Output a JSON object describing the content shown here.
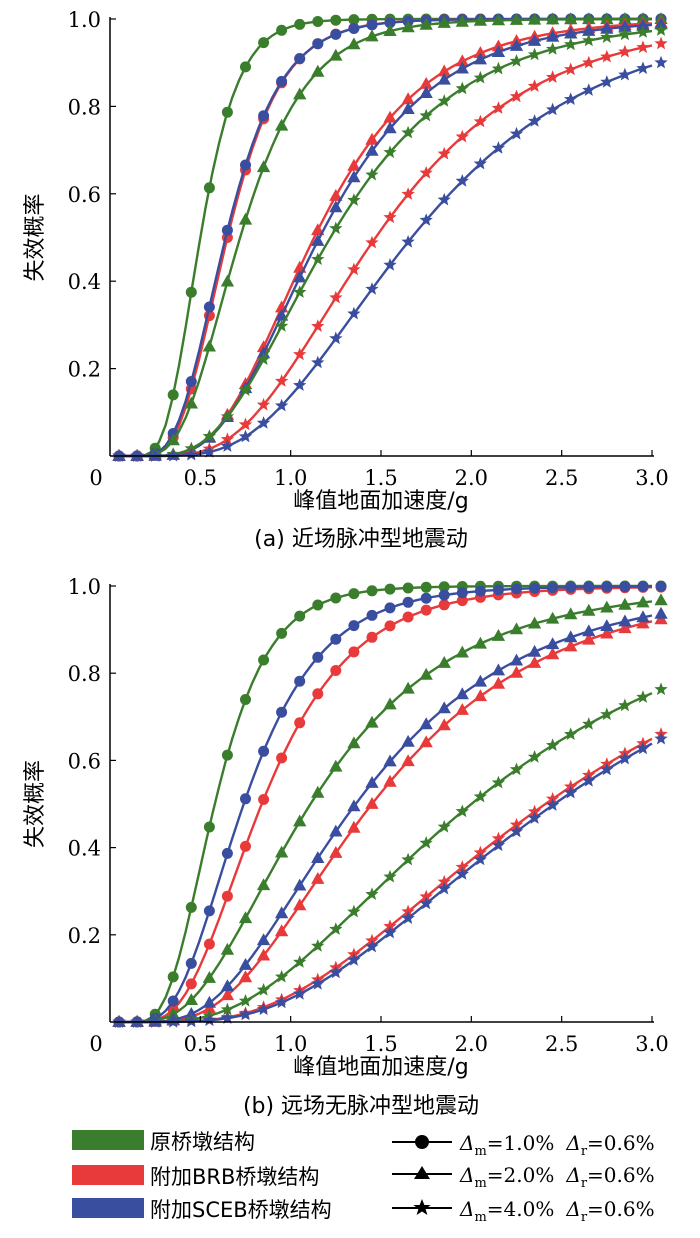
{
  "colors": {
    "original": "#3a7d2c",
    "brb": "#e83a3a",
    "sceb": "#3a4ea0",
    "axis": "#000000"
  },
  "chart_data": [
    {
      "type": "line",
      "title": "(a) 近场脉冲型地震动",
      "xlabel": "峰值地面加速度/g",
      "ylabel": "失效概率",
      "xlim": [
        0,
        3.0
      ],
      "ylim": [
        0,
        1.0
      ],
      "xticks": [
        "0",
        "0.5",
        "1.0",
        "1.5",
        "2.0",
        "2.5",
        "3.0"
      ],
      "yticks": [
        "0.2",
        "0.4",
        "0.6",
        "0.8",
        "1.0"
      ],
      "grid": false,
      "series": [
        {
          "name": "原桥墩结构 Δm=1.0% Δr=0.6%",
          "structure": "original",
          "marker": "circle",
          "median": 0.5,
          "beta": 0.33
        },
        {
          "name": "附加BRB桥墩结构 Δm=1.0% Δr=0.6%",
          "structure": "brb",
          "marker": "circle",
          "median": 0.65,
          "beta": 0.36
        },
        {
          "name": "附加SCEB桥墩结构 Δm=1.0% Δr=0.6%",
          "structure": "sceb",
          "marker": "circle",
          "median": 0.64,
          "beta": 0.37
        },
        {
          "name": "原桥墩结构 Δm=2.0% Δr=0.6%",
          "structure": "original",
          "marker": "triangle",
          "median": 0.72,
          "beta": 0.4
        },
        {
          "name": "附加BRB桥墩结构 Δm=2.0% Δr=0.6%",
          "structure": "brb",
          "marker": "triangle",
          "median": 1.13,
          "beta": 0.42
        },
        {
          "name": "附加SCEB桥墩结构 Δm=2.0% Δr=0.6%",
          "structure": "sceb",
          "marker": "triangle",
          "median": 1.16,
          "beta": 0.43
        },
        {
          "name": "原桥墩结构 Δm=4.0% Δr=0.6%",
          "structure": "original",
          "marker": "star",
          "median": 1.22,
          "beta": 0.47
        },
        {
          "name": "附加BRB桥墩结构 Δm=4.0% Δr=0.6%",
          "structure": "brb",
          "marker": "star",
          "median": 1.47,
          "beta": 0.46
        },
        {
          "name": "附加SCEB桥墩结构 Δm=4.0% Δr=0.6%",
          "structure": "sceb",
          "marker": "star",
          "median": 1.67,
          "beta": 0.47
        }
      ]
    },
    {
      "type": "line",
      "title": "(b) 远场无脉冲型地震动",
      "xlabel": "峰值地面加速度/g",
      "ylabel": "失效概率",
      "xlim": [
        0,
        3.0
      ],
      "ylim": [
        0,
        1.0
      ],
      "xticks": [
        "0",
        "0.5",
        "1.0",
        "1.5",
        "2.0",
        "2.5",
        "3.0"
      ],
      "yticks": [
        "0.2",
        "0.4",
        "0.6",
        "0.8",
        "1.0"
      ],
      "grid": false,
      "series": [
        {
          "name": "原桥墩结构 Δm=1.0% Δr=0.6%",
          "structure": "original",
          "marker": "circle",
          "median": 0.58,
          "beta": 0.4
        },
        {
          "name": "附加BRB桥墩结构 Δm=1.0% Δr=0.6%",
          "structure": "brb",
          "marker": "circle",
          "median": 0.84,
          "beta": 0.46
        },
        {
          "name": "附加SCEB桥墩结构 Δm=1.0% Δr=0.6%",
          "structure": "sceb",
          "marker": "circle",
          "median": 0.74,
          "beta": 0.45
        },
        {
          "name": "原桥墩结构 Δm=2.0% Δr=0.6%",
          "structure": "original",
          "marker": "triangle",
          "median": 1.11,
          "beta": 0.55
        },
        {
          "name": "附加BRB桥墩结构 Δm=2.0% Δr=0.6%",
          "structure": "brb",
          "marker": "triangle",
          "median": 1.45,
          "beta": 0.52
        },
        {
          "name": "附加SCEB桥墩结构 Δm=2.0% Δr=0.6%",
          "structure": "sceb",
          "marker": "triangle",
          "median": 1.36,
          "beta": 0.53
        },
        {
          "name": "原桥墩结构 Δm=4.0% Δr=0.6%",
          "structure": "original",
          "marker": "star",
          "median": 2.0,
          "beta": 0.59
        },
        {
          "name": "附加BRB桥墩结构 Δm=4.0% Δr=0.6%",
          "structure": "brb",
          "marker": "star",
          "median": 2.41,
          "beta": 0.57
        },
        {
          "name": "附加SCEB桥墩结构 Δm=4.0% Δr=0.6%",
          "structure": "sceb",
          "marker": "star",
          "median": 2.46,
          "beta": 0.56
        }
      ]
    }
  ],
  "legend": {
    "placement": "bottom",
    "structures": [
      {
        "key": "original",
        "label": "原桥墩结构"
      },
      {
        "key": "brb",
        "label": "附加BRB桥墩结构"
      },
      {
        "key": "sceb",
        "label": "附加SCEB桥墩结构"
      }
    ],
    "limits": [
      {
        "marker": "circle",
        "dm_sym": "Δ",
        "dm_sub": "m",
        "dm_val": "=1.0%",
        "dr_sym": "Δ",
        "dr_sub": "r",
        "dr_val": "=0.6%"
      },
      {
        "marker": "triangle",
        "dm_sym": "Δ",
        "dm_sub": "m",
        "dm_val": "=2.0%",
        "dr_sym": "Δ",
        "dr_sub": "r",
        "dr_val": "=0.6%"
      },
      {
        "marker": "star",
        "dm_sym": "Δ",
        "dm_sub": "m",
        "dm_val": "=4.0%",
        "dr_sym": "Δ",
        "dr_sub": "r",
        "dr_val": "=0.6%"
      }
    ]
  }
}
